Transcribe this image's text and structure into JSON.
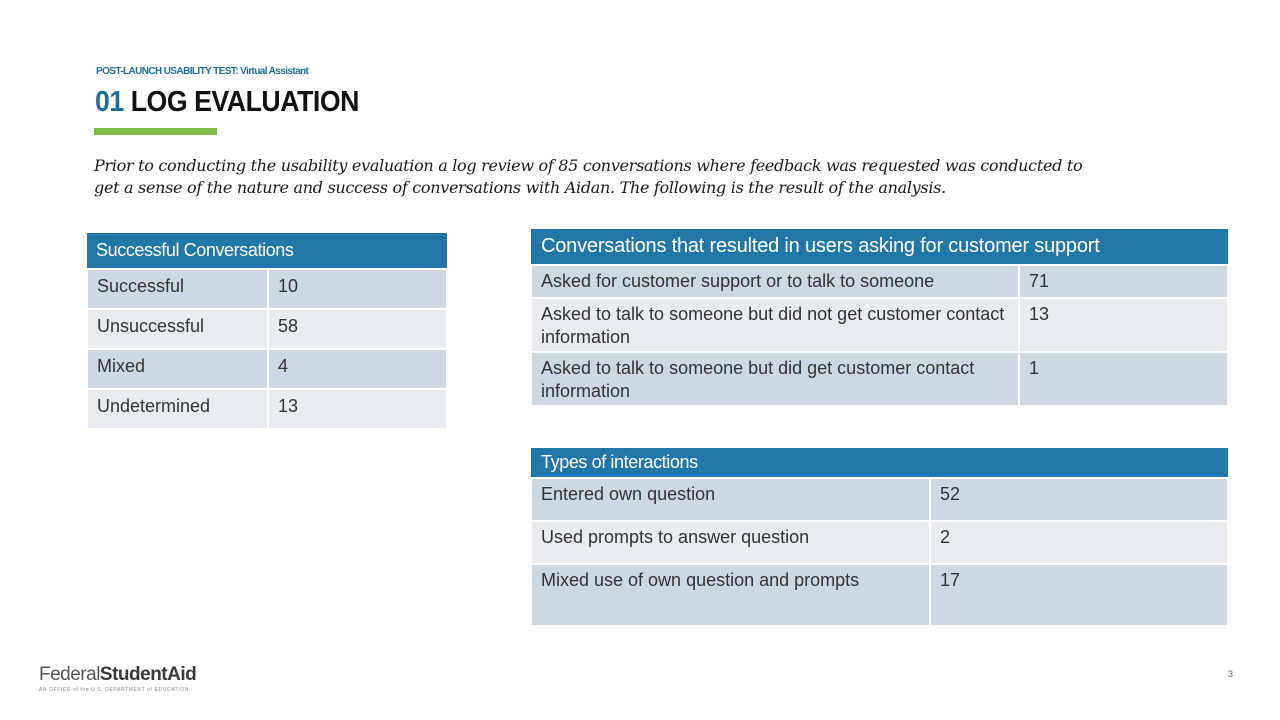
{
  "header": {
    "eyebrow": "POST-LAUNCH USABILITY TEST: Virtual Assistant",
    "title_number": "01",
    "title_text": "LOG EVALUATION",
    "accent_color": "#7dbb42"
  },
  "intro": "Prior to conducting the usability evaluation a log review of 85 conversations where feedback was requested was conducted to get a sense of the nature and success of conversations with Aidan. The following is the result of the analysis.",
  "tables": {
    "successful": {
      "header": "Successful Conversations",
      "rows": [
        {
          "label": "Successful",
          "value": "10"
        },
        {
          "label": "Unsuccessful",
          "value": "58"
        },
        {
          "label": "Mixed",
          "value": "4"
        },
        {
          "label": "Undetermined",
          "value": "13"
        }
      ]
    },
    "support": {
      "header": "Conversations that resulted in users asking for customer support",
      "rows": [
        {
          "label": "Asked for customer support or to talk to someone",
          "value": "71"
        },
        {
          "label": "Asked to talk to someone but did not get customer contact information",
          "value": "13"
        },
        {
          "label": "Asked to talk to someone but did get customer contact information",
          "value": "1"
        }
      ]
    },
    "interactions": {
      "header": "Types of interactions",
      "rows": [
        {
          "label": "Entered own question",
          "value": "52"
        },
        {
          "label": "Used prompts to answer question",
          "value": "2"
        },
        {
          "label": "Mixed use of own question and prompts",
          "value": "17"
        }
      ]
    }
  },
  "colors": {
    "header_blue": "#2178a8",
    "row_dark": "#cfd8e1",
    "row_light": "#e8ebef"
  },
  "footer": {
    "logo_regular": "Federal",
    "logo_bold": "StudentAid",
    "logo_sub": "AN OFFICE of the U.S. DEPARTMENT of EDUCATION",
    "page_number": "3"
  }
}
